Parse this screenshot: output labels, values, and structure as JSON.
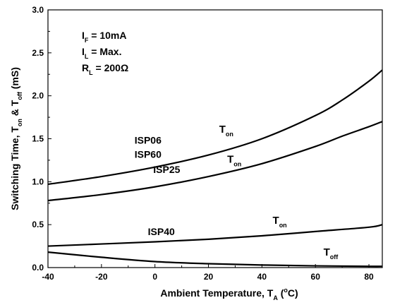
{
  "chart_data": {
    "type": "line",
    "xlabel": {
      "text": "Ambient Temperature, T",
      "sub": "A",
      "suffix": " (",
      "sup": "o",
      "suffix2": "C)"
    },
    "ylabel": {
      "parts": [
        {
          "t": "Switching Time, T",
          "sub": false
        },
        {
          "t": "on",
          "sub": true
        },
        {
          "t": " & T",
          "sub": false
        },
        {
          "t": "off",
          "sub": true
        },
        {
          "t": " (mS)",
          "sub": false
        }
      ]
    },
    "xlim": [
      -40,
      85
    ],
    "ylim": [
      0.0,
      3.0
    ],
    "xticks": [
      -40,
      -20,
      0,
      20,
      40,
      60,
      80
    ],
    "xtick_labels": [
      "-40",
      "-20",
      "0",
      "20",
      "40",
      "60",
      "80"
    ],
    "yticks": [
      0.0,
      0.5,
      1.0,
      1.5,
      2.0,
      2.5,
      3.0
    ],
    "ytick_labels": [
      "0.0",
      "0.5",
      "1.0",
      "1.5",
      "2.0",
      "2.5",
      "3.0"
    ],
    "grid": false,
    "conditions": [
      {
        "main": "I",
        "sub": "F",
        "rest": " = 10mA"
      },
      {
        "main": "I",
        "sub": "L",
        "rest": " = Max."
      },
      {
        "main": "R",
        "sub": "L",
        "rest": " = 200Ω"
      }
    ],
    "series": [
      {
        "name": "ISP06 / ISP60 T_on",
        "x": [
          -40,
          -20,
          0,
          20,
          40,
          60,
          70,
          80,
          85
        ],
        "y": [
          0.97,
          1.06,
          1.17,
          1.31,
          1.5,
          1.77,
          1.95,
          2.17,
          2.3
        ]
      },
      {
        "name": "ISP25 T_on",
        "x": [
          -40,
          -20,
          0,
          20,
          40,
          60,
          70,
          80,
          85
        ],
        "y": [
          0.78,
          0.85,
          0.94,
          1.06,
          1.21,
          1.41,
          1.53,
          1.64,
          1.7
        ]
      },
      {
        "name": "ISP40 T_on",
        "x": [
          -40,
          -20,
          0,
          20,
          40,
          60,
          80,
          85
        ],
        "y": [
          0.25,
          0.275,
          0.3,
          0.33,
          0.37,
          0.42,
          0.47,
          0.5
        ]
      },
      {
        "name": "T_off",
        "x": [
          -40,
          -20,
          0,
          20,
          40,
          60,
          80,
          85
        ],
        "y": [
          0.18,
          0.12,
          0.07,
          0.045,
          0.03,
          0.02,
          0.015,
          0.015
        ]
      }
    ],
    "series_labels": [
      {
        "lines": [
          "ISP06",
          "ISP60"
        ],
        "anchor_x": -5,
        "anchor_y": 1.36
      },
      {
        "lines": [
          "ISP25"
        ],
        "anchor_x": 2,
        "anchor_y": 1.1
      },
      {
        "lines": [
          "ISP40"
        ],
        "anchor_x": 0,
        "anchor_y": 0.38
      }
    ],
    "curve_labels": [
      {
        "main": "T",
        "sub": "on",
        "x": 24,
        "y": 1.57
      },
      {
        "main": "T",
        "sub": "on",
        "x": 27,
        "y": 1.22
      },
      {
        "main": "T",
        "sub": "on",
        "x": 44,
        "y": 0.51
      },
      {
        "main": "T",
        "sub": "off",
        "x": 63,
        "y": 0.14
      }
    ]
  }
}
